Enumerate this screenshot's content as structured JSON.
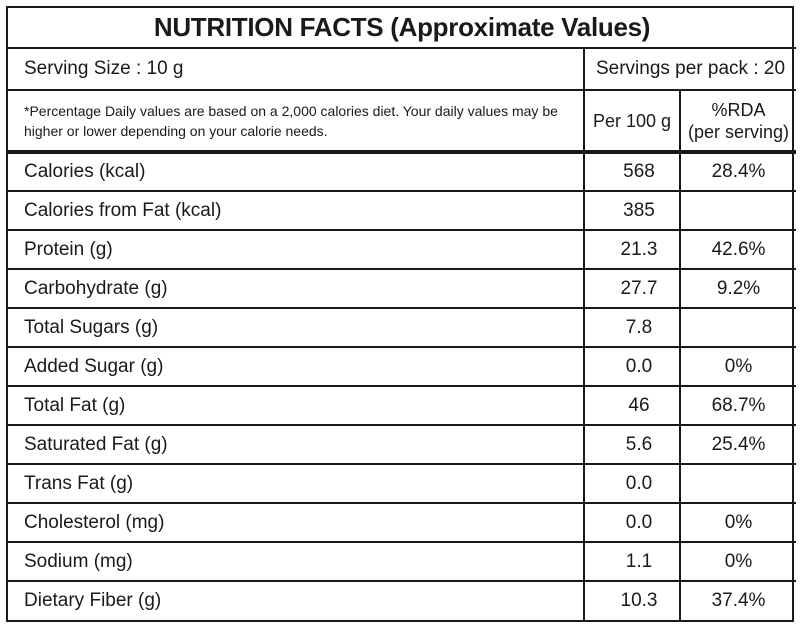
{
  "title": "NUTRITION FACTS (Approximate Values)",
  "serving_size": "Serving Size : 10 g",
  "servings_per_pack": "Servings per pack : 20",
  "note": "*Percentage Daily values are based on a 2,000 calories diet. Your daily values may be higher or lower depending on your calorie needs.",
  "columns": {
    "per100": "Per 100 g",
    "rda_line1": "%RDA",
    "rda_line2": "(per serving)"
  },
  "rows": [
    {
      "name": "Calories (kcal)",
      "per100": "568",
      "rda": "28.4%"
    },
    {
      "name": "Calories from Fat (kcal)",
      "per100": "385",
      "rda": ""
    },
    {
      "name": "Protein (g)",
      "per100": "21.3",
      "rda": "42.6%"
    },
    {
      "name": "Carbohydrate (g)",
      "per100": "27.7",
      "rda": "9.2%"
    },
    {
      "name": "Total Sugars (g)",
      "per100": "7.8",
      "rda": ""
    },
    {
      "name": "Added Sugar (g)",
      "per100": "0.0",
      "rda": "0%"
    },
    {
      "name": "Total Fat (g)",
      "per100": "46",
      "rda": "68.7%"
    },
    {
      "name": "Saturated Fat (g)",
      "per100": "5.6",
      "rda": "25.4%"
    },
    {
      "name": "Trans Fat (g)",
      "per100": "0.0",
      "rda": ""
    },
    {
      "name": "Cholesterol (mg)",
      "per100": "0.0",
      "rda": "0%"
    },
    {
      "name": "Sodium (mg)",
      "per100": "1.1",
      "rda": "0%"
    },
    {
      "name": "Dietary Fiber (g)",
      "per100": "10.3",
      "rda": "37.4%"
    }
  ]
}
